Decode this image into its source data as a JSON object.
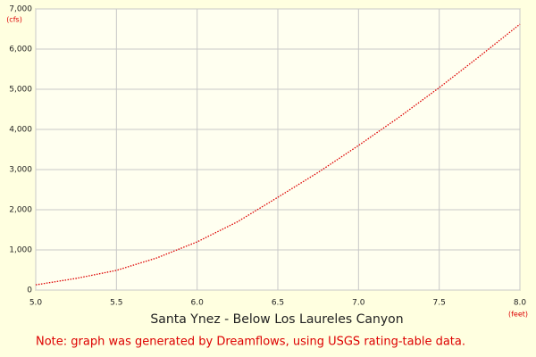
{
  "chart_data": {
    "type": "line",
    "title": "Santa Ynez - Below Los Laureles Canyon",
    "note": "Note: graph was generated by Dreamflows, using USGS rating-table data.",
    "y_unit": "(cfs)",
    "x_unit": "(feet)",
    "x": [
      5.0,
      5.25,
      5.5,
      5.75,
      6.0,
      6.25,
      6.5,
      6.75,
      7.0,
      7.25,
      7.5,
      7.75,
      8.0
    ],
    "values": [
      130,
      290,
      490,
      800,
      1200,
      1700,
      2310,
      2930,
      3600,
      4300,
      5040,
      5820,
      6620
    ],
    "color": "#dd0000",
    "xlim": [
      5,
      8
    ],
    "xticks": [
      {
        "value": 5,
        "label": "5.0"
      },
      {
        "value": 5.5,
        "label": "5.5"
      },
      {
        "value": 6,
        "label": "6.0"
      },
      {
        "value": 6.5,
        "label": "6.5"
      },
      {
        "value": 7,
        "label": "7.0"
      },
      {
        "value": 7.5,
        "label": "7.5"
      },
      {
        "value": 8,
        "label": "8.0"
      }
    ],
    "ylim": [
      0,
      7000
    ],
    "yticks": [
      0,
      {
        "value": 1000,
        "label": "1,000"
      },
      {
        "value": 2000,
        "label": "2,000"
      },
      {
        "value": 3000,
        "label": "3,000"
      },
      {
        "value": 4000,
        "label": "4,000"
      },
      {
        "value": 5000,
        "label": "5,000"
      },
      {
        "value": 6000,
        "label": "6,000"
      },
      {
        "value": 7000,
        "label": "7,000"
      }
    ],
    "grid": true
  }
}
